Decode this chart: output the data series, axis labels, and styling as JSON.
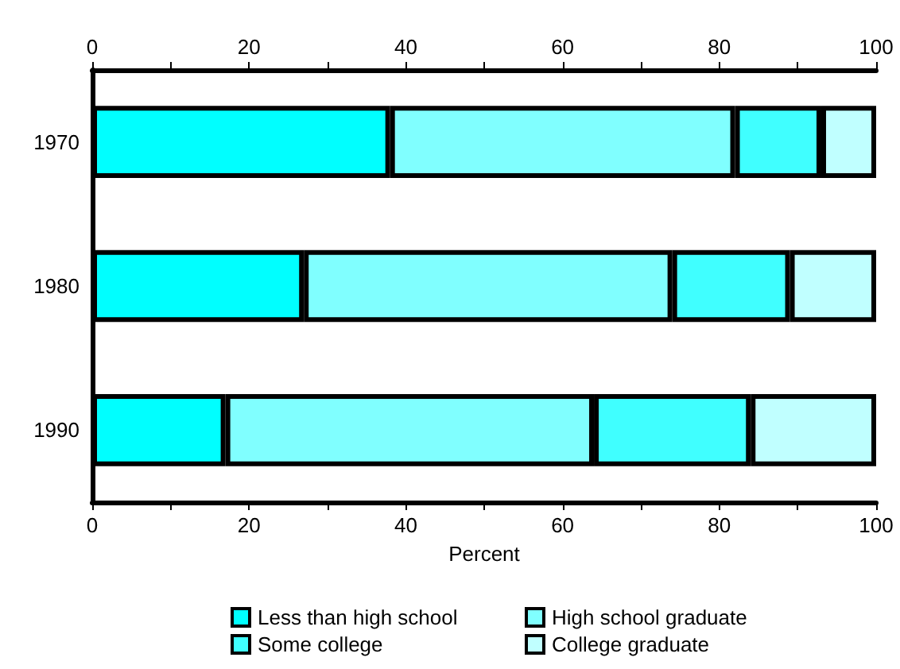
{
  "chart_data": {
    "type": "bar",
    "orientation": "horizontal",
    "stacked": true,
    "xlabel": "Percent",
    "categories": [
      "1970",
      "1980",
      "1990"
    ],
    "series": [
      {
        "name": "Less than high school",
        "color": "#00ffff",
        "values": [
          38,
          27,
          17
        ]
      },
      {
        "name": "High school graduate",
        "color": "#80ffff",
        "values": [
          44,
          47,
          47
        ]
      },
      {
        "name": "Some college",
        "color": "#40ffff",
        "values": [
          11,
          15,
          20
        ]
      },
      {
        "name": "College graduate",
        "color": "#c0ffff",
        "values": [
          7,
          11,
          16
        ]
      }
    ],
    "xlim": [
      0,
      100
    ],
    "xticks": [
      0,
      {
        "value": 10,
        "label": null
      },
      20,
      {
        "value": 30,
        "label": null
      },
      40,
      {
        "value": 50,
        "label": null
      },
      60,
      {
        "value": 70,
        "label": null
      },
      80,
      {
        "value": 90,
        "label": null
      },
      100
    ],
    "x2lim": [
      0,
      100
    ],
    "x2ticks": [
      0,
      {
        "value": 10,
        "label": null
      },
      20,
      {
        "value": 30,
        "label": null
      },
      40,
      {
        "value": 50,
        "label": null
      },
      60,
      {
        "value": 70,
        "label": null
      },
      80,
      {
        "value": 90,
        "label": null
      },
      100
    ],
    "grid": false,
    "legend": "bottom"
  }
}
